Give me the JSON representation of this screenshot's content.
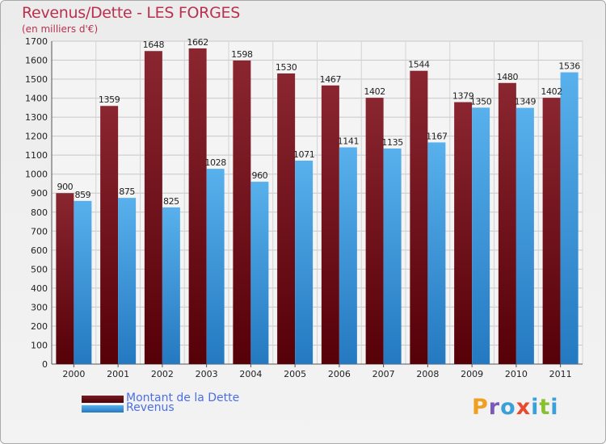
{
  "title": "Revenus/Dette - LES FORGES",
  "subtitle": "(en milliers d'€)",
  "legend": {
    "dette_label": "Montant de la Dette",
    "revenus_label": "Revenus"
  },
  "logo": {
    "text": "Proxiti",
    "letters": [
      "P",
      "r",
      "o",
      "x",
      "i",
      "t",
      "i"
    ]
  },
  "colors": {
    "dette": "#7b1b24",
    "dette_dark": "#5a0a10",
    "revenus": "#4da6e6",
    "revenus_dark": "#2779bf",
    "title": "#b8314f",
    "legend_text": "#4a6ee8",
    "logo": [
      "#f0a020",
      "#7a5ab8",
      "#3aa0d8",
      "#e84a30",
      "#3aa0d8",
      "#8ac030",
      "#3aa0d8"
    ]
  },
  "chart_data": {
    "type": "bar",
    "title": "Revenus/Dette - LES FORGES",
    "ylabel": "(en milliers d'€)",
    "xlabel": "",
    "categories": [
      "2000",
      "2001",
      "2002",
      "2003",
      "2004",
      "2005",
      "2006",
      "2007",
      "2008",
      "2009",
      "2010",
      "2011"
    ],
    "series": [
      {
        "name": "Montant de la Dette",
        "values": [
          900,
          1359,
          1648,
          1662,
          1598,
          1530,
          1467,
          1402,
          1544,
          1379,
          1480,
          1402
        ]
      },
      {
        "name": "Revenus",
        "values": [
          859,
          875,
          825,
          1028,
          960,
          1071,
          1141,
          1135,
          1167,
          1350,
          1349,
          1536
        ]
      }
    ],
    "ylim": [
      0,
      1700
    ],
    "yticks": [
      0,
      100,
      200,
      300,
      400,
      500,
      600,
      700,
      800,
      900,
      1000,
      1100,
      1200,
      1300,
      1400,
      1500,
      1600,
      1700
    ],
    "grid": true,
    "legend_position": "bottom-left"
  }
}
